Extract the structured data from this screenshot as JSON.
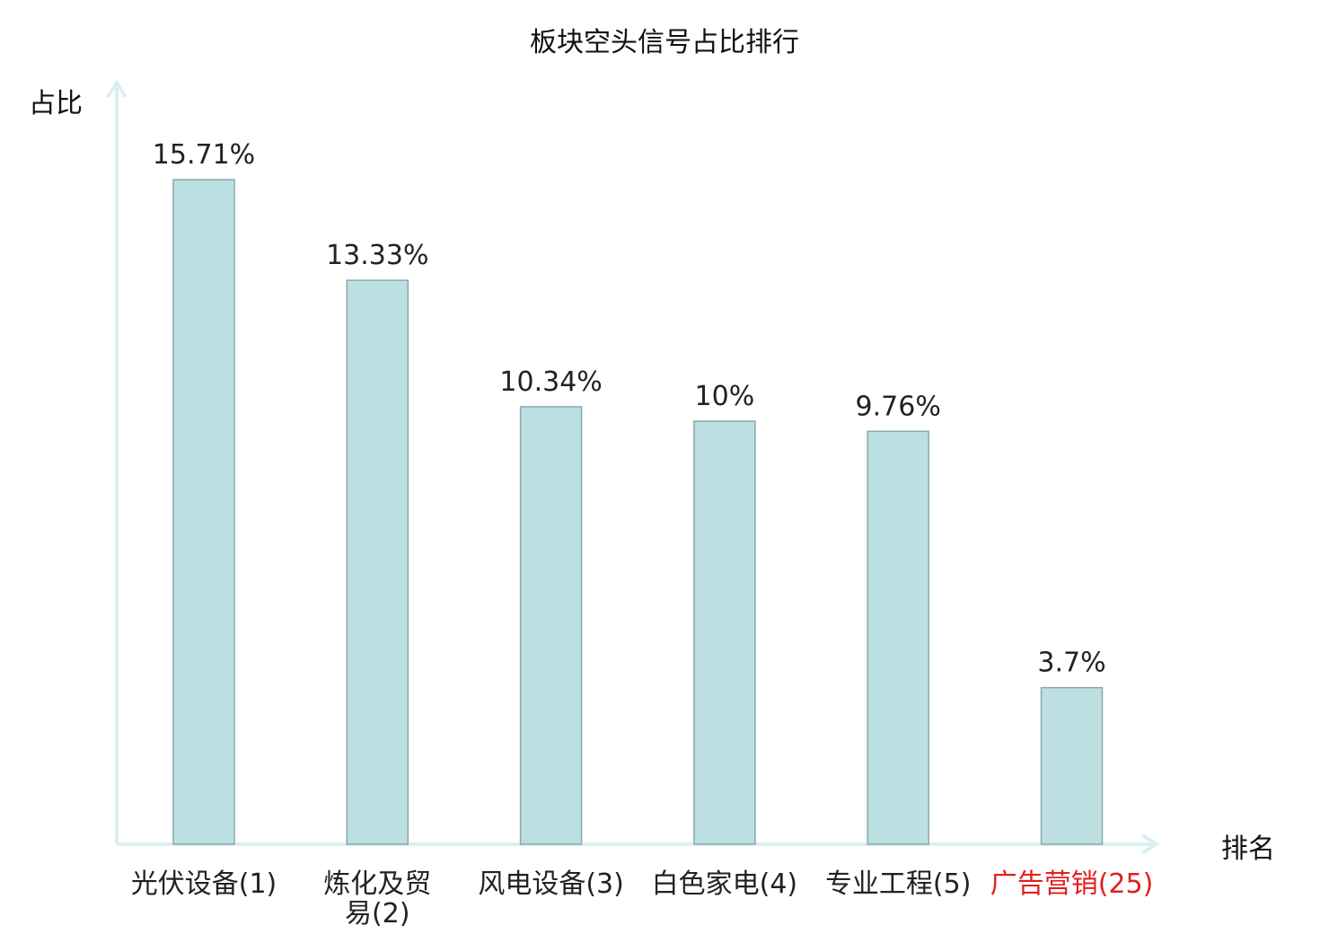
{
  "chart_data": {
    "type": "bar",
    "title": "板块空头信号占比排行",
    "ylabel": "占比",
    "xlabel": "排名",
    "categories": [
      "光伏设备(1)",
      "炼化及贸易(2)",
      "风电设备(3)",
      "白色家电(4)",
      "专业工程(5)",
      "广告营销(25)"
    ],
    "category_lines": [
      [
        "光伏设备(1)"
      ],
      [
        "炼化及贸",
        "易(2)"
      ],
      [
        "风电设备(3)"
      ],
      [
        "白色家电(4)"
      ],
      [
        "专业工程(5)"
      ],
      [
        "广告营销(25)"
      ]
    ],
    "values": [
      15.71,
      13.33,
      10.34,
      10,
      9.76,
      3.7
    ],
    "value_labels": [
      "15.71%",
      "13.33%",
      "10.34%",
      "10%",
      "9.76%",
      "3.7%"
    ],
    "highlight_index": 5,
    "grid": false,
    "colors": {
      "bar_fill": "#bcdfe1",
      "bar_stroke": "#8aa8ab",
      "axis": "#dceff0",
      "text": "#222222",
      "highlight": "#e02020"
    }
  }
}
